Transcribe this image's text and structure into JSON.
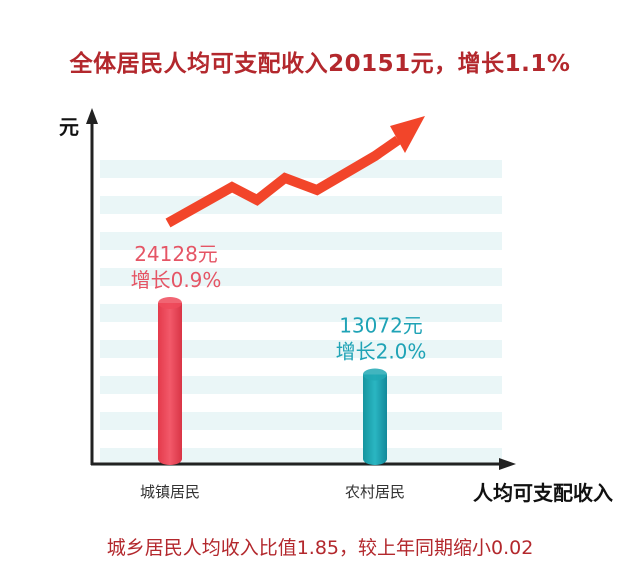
{
  "title": "全体居民人均可支配收入20151元，增长1.1%",
  "footnote": "城乡居民人均收入比值1.85，较上年同期缩小0.02",
  "colors": {
    "title": "#b3282d",
    "urban": "#ee4a5a",
    "urban_text": "#e55565",
    "rural": "#21a8b4",
    "rural_text": "#1fa3b6",
    "arrow": "#f2452a",
    "stripe": "#eaf6f7",
    "axis": "#222222"
  },
  "chart_data": {
    "type": "bar",
    "xlabel": "人均可支配收入",
    "ylabel": "元",
    "categories": [
      "城镇居民",
      "农村居民"
    ],
    "values": [
      24128,
      13072
    ],
    "value_labels": [
      "24128元",
      "13072元"
    ],
    "growth_labels": [
      "增长0.9%",
      "增长2.0%"
    ]
  }
}
